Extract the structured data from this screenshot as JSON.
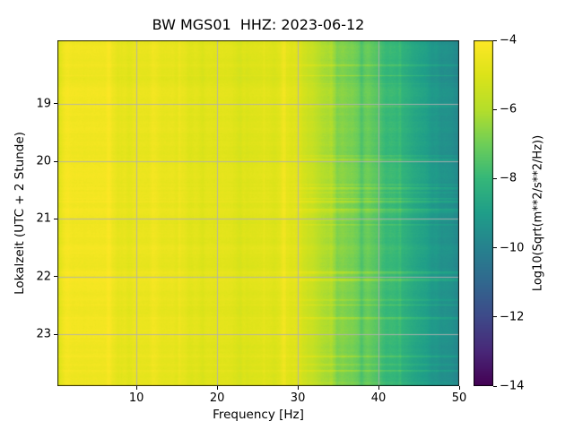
{
  "chart_data": {
    "type": "heatmap",
    "title": "BW MGS01  HHZ: 2023-06-12",
    "xlabel": "Frequency [Hz]",
    "ylabel": "Lokalzeit (UTC + 2 Stunde)",
    "xlim": [
      0.2,
      50
    ],
    "ylim_hours_top_to_bottom": [
      17.9,
      23.9
    ],
    "xticks": [
      10,
      20,
      30,
      40,
      50
    ],
    "yticks": [
      19,
      20,
      21,
      22,
      23
    ],
    "grid": true,
    "grid_color": "#b0b0b0",
    "colormap": "viridis",
    "colorbar": {
      "label": "Log10(Sqrt(m**2/s**2/Hz))",
      "ticks": [
        -4,
        -6,
        -8,
        -10,
        -12,
        -14
      ],
      "vmin": -14,
      "vmax": -4
    },
    "spectral_profile": {
      "frequencies_hz": [
        0.2,
        1,
        3,
        6,
        10,
        15,
        20,
        25,
        28,
        30,
        31,
        33,
        36,
        40,
        45,
        50
      ],
      "mean_log10_amplitude": [
        -5.0,
        -4.4,
        -4.3,
        -4.4,
        -4.6,
        -4.7,
        -4.8,
        -4.9,
        -4.9,
        -5.0,
        -5.3,
        -6.0,
        -6.8,
        -7.5,
        -8.7,
        -9.7
      ]
    },
    "description": "Seismic spectrogram: high energy (yellow) below ~30 Hz over 18:00-24:00 local time, attenuating through green to teal/blue toward 50 Hz, with narrow vertical spectral lines and brief broadband time events."
  }
}
